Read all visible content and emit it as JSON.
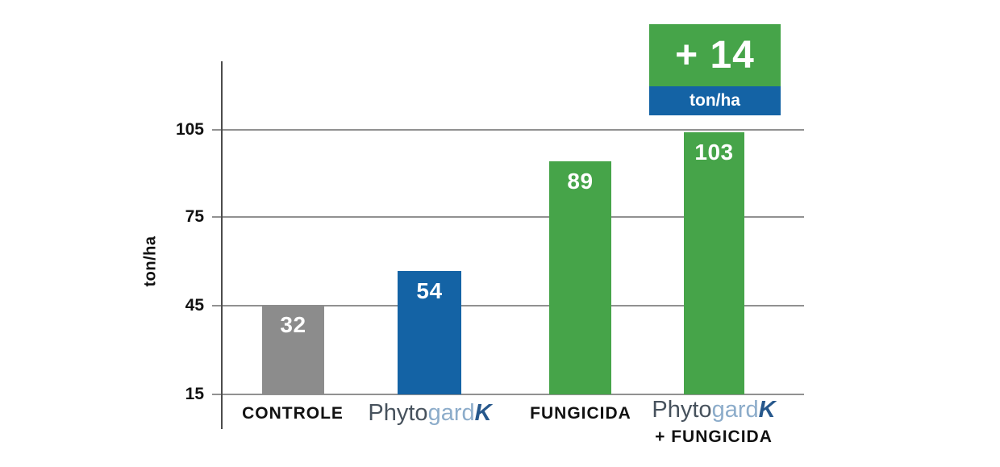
{
  "chart_data": {
    "type": "bar",
    "categories": [
      "CONTROLE",
      "PhytogardK",
      "FUNGICIDA",
      "PhytogardK + FUNGICIDA"
    ],
    "values": [
      32,
      54,
      89,
      103
    ],
    "title": "",
    "xlabel": "",
    "ylabel": "ton/ha",
    "yticks": [
      15,
      45,
      75,
      105
    ],
    "ylim": [
      15,
      115
    ],
    "grid": "horizontal",
    "legend": "none",
    "bar_colors": [
      "#8c8c8c",
      "#1463a5",
      "#46a449",
      "#46a449"
    ],
    "annotation": {
      "delta": "+ 14",
      "unit": "ton/ha",
      "attached_to": "PhytogardK + FUNGICIDA",
      "bg_top": "#46a449",
      "bg_bottom": "#1463a5"
    }
  },
  "axis": {
    "ylabel": "ton/ha"
  },
  "labels": {
    "controle": "CONTROLE",
    "fungicida": "FUNGICIDA",
    "plus_fungicida": "+ FUNGICIDA"
  },
  "brand": {
    "phyto": "Phyto",
    "gard": "gard",
    "k": "K"
  },
  "colors": {
    "bar_gray": "#8c8c8c",
    "bar_blue": "#1463a5",
    "bar_green": "#46a449",
    "badge_green": "#46a449",
    "badge_blue": "#1463a5",
    "gridline": "#919191",
    "axis_line": "#4c4c4c",
    "text": "#111111",
    "bar_value_text": "#ffffff",
    "brand_phyto": "#47525d",
    "brand_gard": "#8cacca",
    "brand_k": "#27588c"
  }
}
